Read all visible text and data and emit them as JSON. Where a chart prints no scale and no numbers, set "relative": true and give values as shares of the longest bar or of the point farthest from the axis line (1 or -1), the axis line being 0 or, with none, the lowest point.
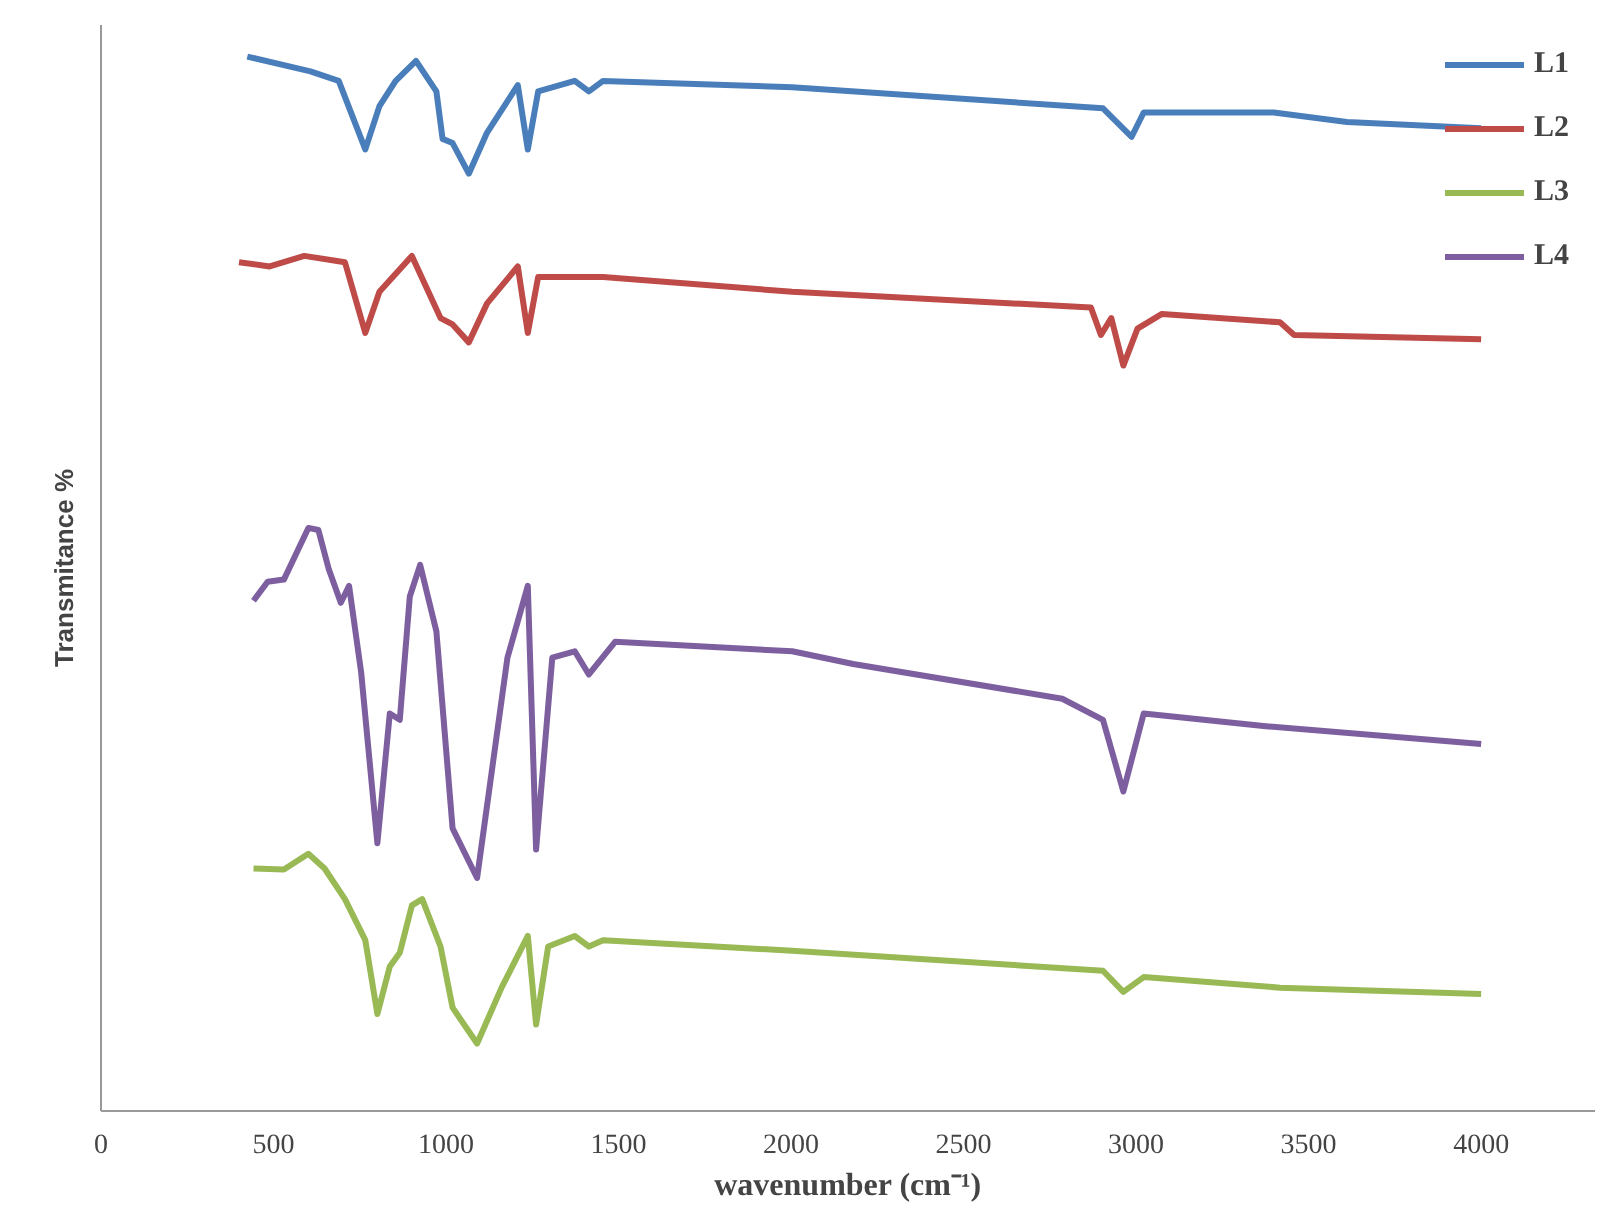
{
  "chart_data": {
    "type": "line",
    "xlabel": "wavenumber (cm⁻¹)",
    "ylabel": "Transmitance %",
    "relative": true,
    "xlim": [
      0,
      4330
    ],
    "xticks": [
      0,
      500,
      1000,
      1500,
      2000,
      2500,
      3000,
      3500,
      4000
    ],
    "legend": "top right",
    "series": [
      {
        "name": "L1",
        "color": "#4a7ebb",
        "x": [
          424,
          607,
          689,
          766,
          807,
          854,
          913,
          972,
          990,
          1019,
          1066,
          1119,
          1208,
          1237,
          1267,
          1373,
          1414,
          1455,
          2003,
          2904,
          2987,
          3022,
          3399,
          3611,
          4000
        ],
        "values": [
          1.0,
          0.986,
          0.977,
          0.912,
          0.953,
          0.977,
          0.996,
          0.967,
          0.922,
          0.918,
          0.889,
          0.928,
          0.973,
          0.912,
          0.967,
          0.977,
          0.967,
          0.977,
          0.971,
          0.951,
          0.924,
          0.947,
          0.947,
          0.938,
          0.932
        ]
      },
      {
        "name": "L2",
        "color": "#be4b48",
        "x": [
          400,
          489,
          589,
          707,
          766,
          807,
          901,
          984,
          1019,
          1066,
          1119,
          1208,
          1237,
          1267,
          1455,
          2003,
          2869,
          2898,
          2928,
          2963,
          3004,
          3075,
          3417,
          3458,
          4000
        ],
        "values": [
          0.805,
          0.801,
          0.811,
          0.805,
          0.738,
          0.777,
          0.811,
          0.752,
          0.746,
          0.729,
          0.766,
          0.801,
          0.738,
          0.791,
          0.791,
          0.777,
          0.762,
          0.736,
          0.752,
          0.707,
          0.742,
          0.756,
          0.748,
          0.736,
          0.732
        ]
      },
      {
        "name": "L3",
        "color": "#98b954",
        "x": [
          442,
          530,
          601,
          648,
          707,
          766,
          801,
          837,
          866,
          901,
          931,
          984,
          1019,
          1090,
          1161,
          1237,
          1261,
          1296,
          1373,
          1414,
          1455,
          2003,
          2904,
          2963,
          3022,
          3417,
          4000
        ],
        "values": [
          0.23,
          0.229,
          0.244,
          0.23,
          0.201,
          0.162,
          0.092,
          0.137,
          0.15,
          0.195,
          0.201,
          0.156,
          0.098,
          0.064,
          0.117,
          0.166,
          0.082,
          0.156,
          0.166,
          0.156,
          0.162,
          0.152,
          0.133,
          0.113,
          0.127,
          0.117,
          0.111
        ]
      },
      {
        "name": "L4",
        "color": "#7d5fa0",
        "x": [
          442,
          483,
          530,
          601,
          630,
          660,
          695,
          719,
          754,
          801,
          837,
          866,
          895,
          925,
          972,
          1019,
          1090,
          1178,
          1237,
          1261,
          1308,
          1373,
          1414,
          1490,
          2003,
          2180,
          2786,
          2904,
          2963,
          3022,
          3376,
          4000
        ],
        "values": [
          0.484,
          0.502,
          0.504,
          0.553,
          0.551,
          0.514,
          0.482,
          0.498,
          0.416,
          0.254,
          0.377,
          0.371,
          0.488,
          0.518,
          0.455,
          0.268,
          0.221,
          0.43,
          0.498,
          0.248,
          0.43,
          0.436,
          0.414,
          0.445,
          0.436,
          0.424,
          0.391,
          0.371,
          0.303,
          0.377,
          0.365,
          0.348
        ]
      }
    ]
  }
}
